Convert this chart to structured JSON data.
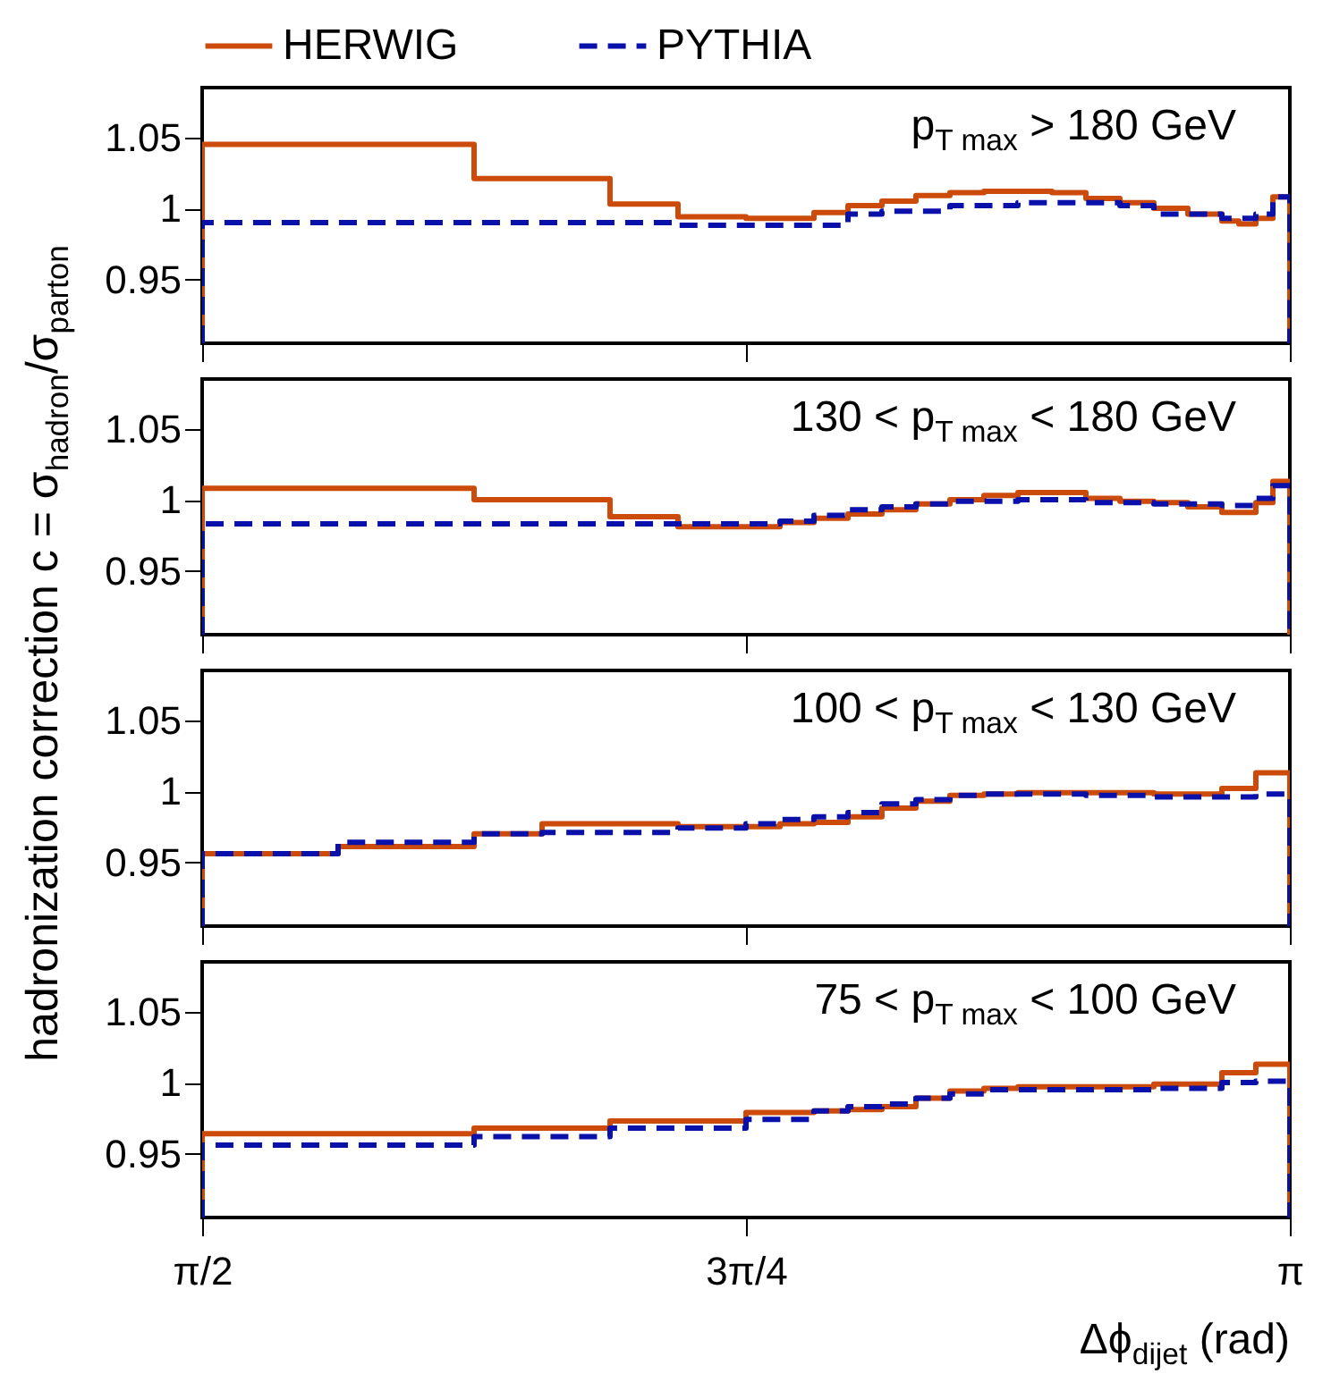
{
  "chart_data": [
    {
      "type": "histogram",
      "ylabel": "hadronization correction   c = σ$_{hadron}$/σ$_{parton}$",
      "legend": "top",
      "tick_labels": "y",
      "annotations": [
        "p$_{T max}$ > 180 GeV"
      ],
      "bins": [
        1.5708,
        1.9635,
        2.1598,
        2.258,
        2.3562,
        2.4544,
        2.5035,
        2.5525,
        2.6016,
        2.6507,
        2.6998,
        2.7489,
        2.798,
        2.8471,
        2.8962,
        2.9452,
        2.9943,
        3.0434,
        3.068,
        3.0925,
        3.1171,
        3.1416
      ],
      "series": [
        {
          "name": "HERWIG",
          "color": "#cc4a0a",
          "line_style": "solid",
          "values": [
            1.045,
            1.021,
            1.003,
            0.994,
            0.993,
            0.997,
            1.002,
            1.005,
            1.009,
            1.011,
            1.012,
            1.012,
            1.011,
            1.007,
            1.004,
            1.0,
            0.996,
            0.991,
            0.989,
            0.993,
            1.008
          ]
        },
        {
          "name": "PYTHIA",
          "color": "#0a10aa",
          "line_style": "dashed",
          "values": [
            0.99,
            0.99,
            0.99,
            0.988,
            0.988,
            0.988,
            0.996,
            0.998,
            0.998,
            1.002,
            1.002,
            1.004,
            1.004,
            1.004,
            1.002,
            0.996,
            0.996,
            0.993,
            0.993,
            0.996,
            1.008
          ]
        }
      ],
      "xlim": [
        1.5708,
        3.1416
      ],
      "xticks": [
        {
          "value": 1.5708,
          "label": null
        },
        {
          "value": 2.3562,
          "label": null
        },
        {
          "value": 3.1416,
          "label": null
        }
      ],
      "ylim": [
        0.905,
        1.085
      ],
      "yticks": [
        0.95,
        1,
        1.05
      ]
    },
    {
      "type": "histogram",
      "tick_labels": "y",
      "annotations": [
        "130 < p$_{T max}$ < 180 GeV"
      ],
      "bins": [
        1.5708,
        1.9635,
        2.1598,
        2.258,
        2.3562,
        2.4053,
        2.4544,
        2.5035,
        2.5525,
        2.6016,
        2.6507,
        2.6998,
        2.7489,
        2.798,
        2.8471,
        2.8962,
        2.9452,
        2.9943,
        3.0434,
        3.068,
        3.0925,
        3.1171,
        3.1416
      ],
      "series": [
        {
          "name": "HERWIG",
          "color": "#cc4a0a",
          "line_style": "solid",
          "values": [
            1.008,
            1.0,
            0.988,
            0.981,
            0.981,
            0.984,
            0.987,
            0.99,
            0.993,
            0.997,
            1.0,
            1.003,
            1.005,
            1.005,
            1.001,
            0.999,
            0.998,
            0.995,
            0.991,
            0.991,
            0.998,
            1.013
          ]
        },
        {
          "name": "PYTHIA",
          "color": "#0a10aa",
          "line_style": "dashed",
          "values": [
            0.983,
            0.983,
            0.983,
            0.983,
            0.983,
            0.985,
            0.989,
            0.993,
            0.995,
            0.997,
            0.999,
            0.999,
            1.0,
            1.0,
            0.998,
            0.998,
            0.997,
            0.997,
            0.996,
            0.996,
            1.001,
            1.01
          ]
        }
      ],
      "xlim": [
        1.5708,
        3.1416
      ],
      "xticks": [
        {
          "value": 1.5708,
          "label": null
        },
        {
          "value": 2.3562,
          "label": null
        },
        {
          "value": 3.1416,
          "label": null
        }
      ],
      "ylim": [
        0.905,
        1.085
      ],
      "yticks": [
        0.95,
        1,
        1.05
      ]
    },
    {
      "type": "histogram",
      "tick_labels": "y",
      "annotations": [
        "100 < p$_{T max}$ < 130 GeV"
      ],
      "bins": [
        1.5708,
        1.7671,
        1.9635,
        2.0617,
        2.258,
        2.3562,
        2.4053,
        2.4544,
        2.5035,
        2.5525,
        2.6016,
        2.6507,
        2.6998,
        2.7489,
        2.798,
        2.8471,
        2.8962,
        2.9452,
        2.9943,
        3.0434,
        3.0925,
        3.1416
      ],
      "series": [
        {
          "name": "HERWIG",
          "color": "#cc4a0a",
          "line_style": "solid",
          "values": [
            0.956,
            0.961,
            0.97,
            0.977,
            0.975,
            0.975,
            0.977,
            0.978,
            0.982,
            0.988,
            0.993,
            0.997,
            0.998,
            0.999,
            0.999,
            0.999,
            0.999,
            0.998,
            0.998,
            1.002,
            1.013
          ]
        },
        {
          "name": "PYTHIA",
          "color": "#0a10aa",
          "line_style": "dashed",
          "values": [
            0.956,
            0.964,
            0.97,
            0.971,
            0.974,
            0.977,
            0.98,
            0.982,
            0.985,
            0.991,
            0.994,
            0.997,
            0.998,
            0.998,
            0.998,
            0.997,
            0.997,
            0.996,
            0.996,
            0.996,
            0.998
          ]
        }
      ],
      "xlim": [
        1.5708,
        3.1416
      ],
      "xticks": [
        {
          "value": 1.5708,
          "label": null
        },
        {
          "value": 2.3562,
          "label": null
        },
        {
          "value": 3.1416,
          "label": null
        }
      ],
      "ylim": [
        0.905,
        1.085
      ],
      "yticks": [
        0.95,
        1,
        1.05
      ]
    },
    {
      "type": "histogram",
      "xlabel": "Δϕ$_{dijet}$  (rad)",
      "annotations": [
        "75 < p$_{T max}$ < 100 GeV"
      ],
      "bins": [
        1.5708,
        1.9635,
        2.1598,
        2.3562,
        2.4544,
        2.5035,
        2.5525,
        2.6016,
        2.6507,
        2.6998,
        2.7489,
        2.798,
        2.8471,
        2.8962,
        2.9452,
        2.9943,
        3.0434,
        3.0925,
        3.1416
      ],
      "series": [
        {
          "name": "HERWIG",
          "color": "#cc4a0a",
          "line_style": "solid",
          "values": [
            0.964,
            0.968,
            0.973,
            0.979,
            0.98,
            0.981,
            0.983,
            0.989,
            0.994,
            0.996,
            0.997,
            0.997,
            0.997,
            0.997,
            0.999,
            0.999,
            1.007,
            1.013
          ]
        },
        {
          "name": "PYTHIA",
          "color": "#0a10aa",
          "line_style": "dashed",
          "values": [
            0.956,
            0.962,
            0.968,
            0.974,
            0.98,
            0.983,
            0.985,
            0.989,
            0.992,
            0.995,
            0.995,
            0.995,
            0.995,
            0.995,
            0.996,
            0.996,
            1.0,
            1.001
          ]
        }
      ],
      "xlim": [
        1.5708,
        3.1416
      ],
      "xticks": [
        {
          "value": 1.5708,
          "label": "π/2"
        },
        {
          "value": 2.3562,
          "label": "3π/4"
        },
        {
          "value": 3.1416,
          "label": "π"
        }
      ],
      "ylim": [
        0.905,
        1.085
      ],
      "yticks": [
        0.95,
        1,
        1.05
      ]
    }
  ]
}
